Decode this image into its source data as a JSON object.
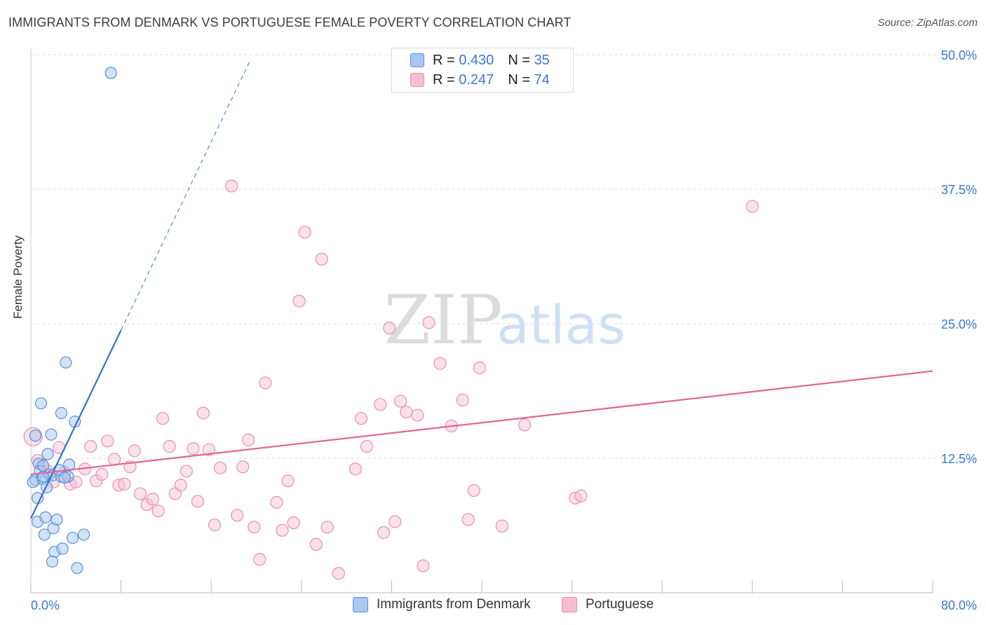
{
  "title": "IMMIGRANTS FROM DENMARK VS PORTUGUESE FEMALE POVERTY CORRELATION CHART",
  "source": "Source: ZipAtlas.com",
  "watermark": {
    "zip": "ZIP",
    "atlas": "atlas"
  },
  "legend_top": [
    {
      "r_label": "R = ",
      "r_value": "0.430",
      "n_label": "N = ",
      "n_value": "35"
    },
    {
      "r_label": "R = ",
      "r_value": "0.247",
      "n_label": "N = ",
      "n_value": "74"
    }
  ],
  "legend_bottom": [
    "Immigrants from Denmark",
    "Portuguese"
  ],
  "colors": {
    "blue_fill": "#a8c8f0",
    "blue_stroke": "#5a8fdc",
    "blue_line": "#2f74d0",
    "pink_fill": "#f7bcd0",
    "pink_stroke": "#e890ae",
    "pink_line": "#e0659a",
    "tick_label": "#3a78d6",
    "grid": "#dcdcdc"
  },
  "chart_data": {
    "type": "scatter",
    "title": "IMMIGRANTS FROM DENMARK VS PORTUGUESE FEMALE POVERTY CORRELATION CHART",
    "xlabel": "",
    "ylabel": "Female Poverty",
    "xlim": [
      0,
      80
    ],
    "ylim": [
      0,
      50
    ],
    "x_tick_labels": [
      "0.0%",
      "80.0%"
    ],
    "y_ticks": [
      12.5,
      25.0,
      37.5,
      50.0
    ],
    "y_tick_labels": [
      "12.5%",
      "25.0%",
      "37.5%",
      "50.0%"
    ],
    "grid": true,
    "series": [
      {
        "name": "Immigrants from Denmark",
        "r": 0.43,
        "n": 35,
        "trend": {
          "x0": 0,
          "y0": 6.9,
          "x1": 8.0,
          "y1": 24.4,
          "dash_to_x": 19.5
        },
        "points": [
          [
            7.1,
            48.3
          ],
          [
            0.4,
            14.6
          ],
          [
            0.4,
            10.5
          ],
          [
            0.6,
            8.8
          ],
          [
            0.6,
            6.6
          ],
          [
            0.7,
            12.0
          ],
          [
            0.8,
            11.3
          ],
          [
            0.9,
            17.6
          ],
          [
            1.0,
            10.6
          ],
          [
            1.1,
            11.8
          ],
          [
            1.2,
            5.4
          ],
          [
            1.3,
            7.0
          ],
          [
            1.4,
            9.8
          ],
          [
            1.5,
            12.9
          ],
          [
            1.6,
            11.0
          ],
          [
            1.8,
            14.7
          ],
          [
            1.9,
            10.9
          ],
          [
            2.0,
            6.0
          ],
          [
            2.1,
            3.8
          ],
          [
            2.3,
            6.8
          ],
          [
            2.7,
            10.8
          ],
          [
            2.7,
            16.7
          ],
          [
            2.8,
            4.1
          ],
          [
            3.1,
            21.4
          ],
          [
            3.3,
            10.8
          ],
          [
            3.4,
            11.9
          ],
          [
            3.7,
            5.1
          ],
          [
            3.9,
            15.9
          ],
          [
            4.1,
            2.3
          ],
          [
            4.7,
            5.4
          ],
          [
            1.9,
            2.9
          ],
          [
            2.5,
            11.4
          ],
          [
            0.2,
            10.3
          ],
          [
            1.1,
            10.8
          ],
          [
            3.0,
            10.7
          ]
        ]
      },
      {
        "name": "Portuguese",
        "r": 0.247,
        "n": 74,
        "trend": {
          "x0": 0,
          "y0": 11.0,
          "x1": 80,
          "y1": 20.6
        },
        "points": [
          [
            0.2,
            14.5
          ],
          [
            1.0,
            11.9
          ],
          [
            1.5,
            11.3
          ],
          [
            2.0,
            10.3
          ],
          [
            2.5,
            13.5
          ],
          [
            3.0,
            11.2
          ],
          [
            3.5,
            10.1
          ],
          [
            4.0,
            10.3
          ],
          [
            4.8,
            11.5
          ],
          [
            5.3,
            13.6
          ],
          [
            5.8,
            10.4
          ],
          [
            6.3,
            11.0
          ],
          [
            6.8,
            14.1
          ],
          [
            7.4,
            12.4
          ],
          [
            7.8,
            10.0
          ],
          [
            8.3,
            10.1
          ],
          [
            8.8,
            11.7
          ],
          [
            9.2,
            13.2
          ],
          [
            9.7,
            9.2
          ],
          [
            10.3,
            8.2
          ],
          [
            10.8,
            8.7
          ],
          [
            11.3,
            7.6
          ],
          [
            11.7,
            16.2
          ],
          [
            12.3,
            13.6
          ],
          [
            12.8,
            9.2
          ],
          [
            13.3,
            10.0
          ],
          [
            13.8,
            11.3
          ],
          [
            14.4,
            13.4
          ],
          [
            14.8,
            8.5
          ],
          [
            15.3,
            16.7
          ],
          [
            15.8,
            13.3
          ],
          [
            16.3,
            6.3
          ],
          [
            16.8,
            11.6
          ],
          [
            17.8,
            37.8
          ],
          [
            18.3,
            7.2
          ],
          [
            18.8,
            11.7
          ],
          [
            19.3,
            14.2
          ],
          [
            19.8,
            6.1
          ],
          [
            20.3,
            3.1
          ],
          [
            20.8,
            19.5
          ],
          [
            21.8,
            8.4
          ],
          [
            22.3,
            5.8
          ],
          [
            22.8,
            10.4
          ],
          [
            23.3,
            6.5
          ],
          [
            23.8,
            27.1
          ],
          [
            24.3,
            33.5
          ],
          [
            25.3,
            4.5
          ],
          [
            25.8,
            31.0
          ],
          [
            26.3,
            6.1
          ],
          [
            27.3,
            1.8
          ],
          [
            28.8,
            11.5
          ],
          [
            29.3,
            16.2
          ],
          [
            29.8,
            13.6
          ],
          [
            31.0,
            17.5
          ],
          [
            31.3,
            5.6
          ],
          [
            31.8,
            24.6
          ],
          [
            32.3,
            6.6
          ],
          [
            32.8,
            17.8
          ],
          [
            33.3,
            16.8
          ],
          [
            34.3,
            16.5
          ],
          [
            34.8,
            2.5
          ],
          [
            35.3,
            25.1
          ],
          [
            36.3,
            21.3
          ],
          [
            37.3,
            15.5
          ],
          [
            38.3,
            17.9
          ],
          [
            38.8,
            6.8
          ],
          [
            39.3,
            9.5
          ],
          [
            39.8,
            20.9
          ],
          [
            41.8,
            6.2
          ],
          [
            43.8,
            15.6
          ],
          [
            48.3,
            8.8
          ],
          [
            48.8,
            9.0
          ],
          [
            64.0,
            35.9
          ],
          [
            0.6,
            12.3
          ]
        ]
      }
    ]
  }
}
